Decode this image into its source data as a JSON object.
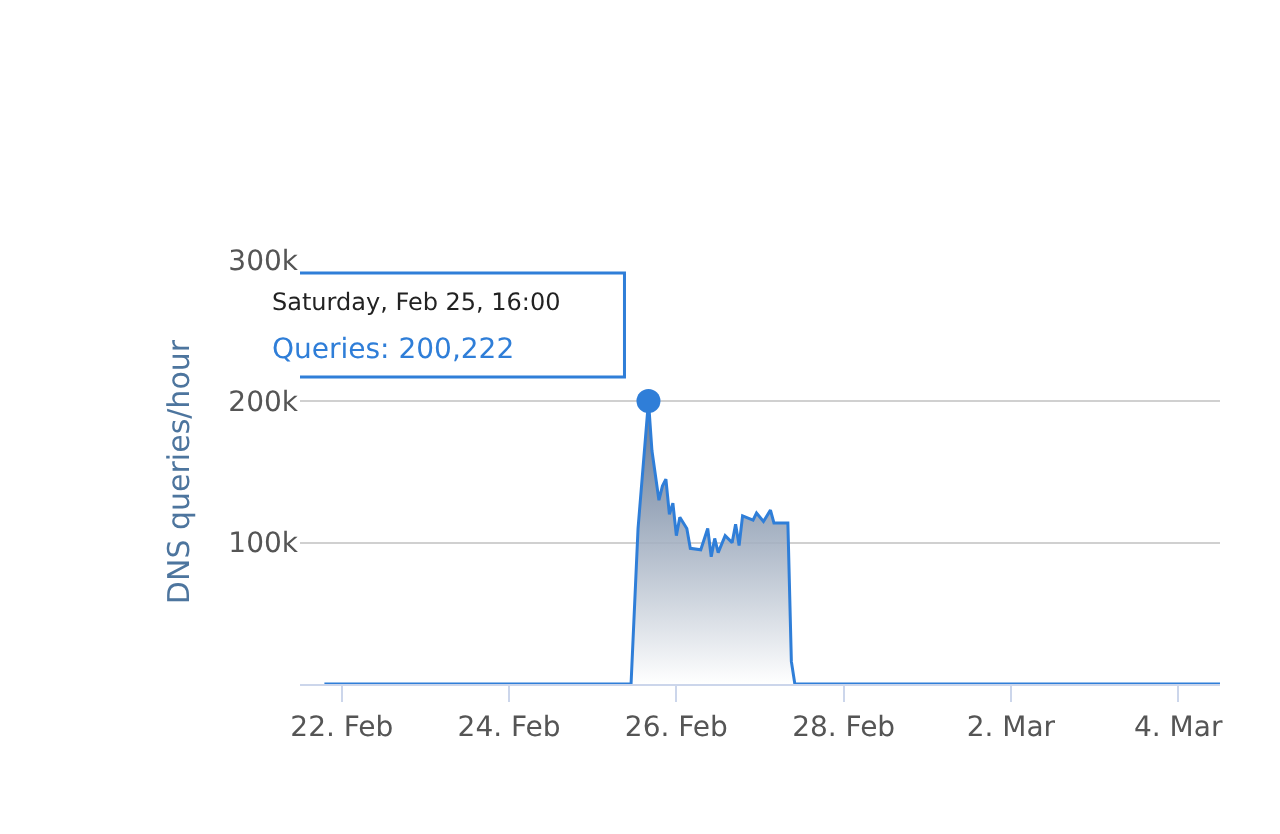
{
  "chart_data": {
    "type": "area",
    "ylabel": "DNS queries/hour",
    "x": [
      "--02-21T19:00",
      "--02-25T11:00",
      "--02-25T13:00",
      "--02-25T16:00",
      "--02-25T17:00",
      "--02-25T19:00",
      "--02-25T20:00",
      "--02-25T21:00",
      "--02-25T22:00",
      "--02-25T23:00",
      "--02-26T00:00",
      "--02-26T01:00",
      "--02-26T03:00",
      "--02-26T04:00",
      "--02-26T07:00",
      "--02-26T09:00",
      "--02-26T10:00",
      "--02-26T11:00",
      "--02-26T12:00",
      "--02-26T14:00",
      "--02-26T16:00",
      "--02-26T17:00",
      "--02-26T18:00",
      "--02-26T19:00",
      "--02-26T22:00",
      "--02-26T23:00",
      "--02-27T01:00",
      "--02-27T03:00",
      "--02-27T04:00",
      "--02-27T08:00",
      "--02-27T09:00",
      "--02-27T10:00",
      "--03-04T12:00"
    ],
    "series": [
      {
        "color": "#2f7ed8",
        "values": [
          0,
          0,
          110000,
          200222,
          165000,
          130000,
          140000,
          145000,
          120000,
          128000,
          105000,
          118000,
          110000,
          96000,
          95000,
          110000,
          90000,
          103000,
          93000,
          105000,
          100000,
          113000,
          98000,
          119000,
          116000,
          121000,
          115000,
          123000,
          114000,
          114000,
          16000,
          0,
          0
        ]
      }
    ],
    "xlim": [
      "--02-21T12:00",
      "--03-04T12:00"
    ],
    "xticks": [
      {
        "value": "--02-22",
        "label": "22. Feb"
      },
      {
        "value": "--02-24",
        "label": "24. Feb"
      },
      {
        "value": "--02-26",
        "label": "26. Feb"
      },
      {
        "value": "--02-28",
        "label": "28. Feb"
      },
      {
        "value": "--03-02",
        "label": "2. Mar"
      },
      {
        "value": "--03-04",
        "label": "4. Mar"
      }
    ],
    "ylim": [
      0,
      300000
    ],
    "yticks": [
      {
        "value": 100000,
        "label": "100k"
      },
      {
        "value": 200000,
        "label": "200k"
      },
      {
        "value": 300000,
        "label": "300k"
      }
    ],
    "grid": "y",
    "legend": false,
    "marker": "none",
    "line_style": "solid",
    "annotations": [
      "Saturday, Feb 25, 16:00",
      "Queries: 200,222"
    ]
  }
}
